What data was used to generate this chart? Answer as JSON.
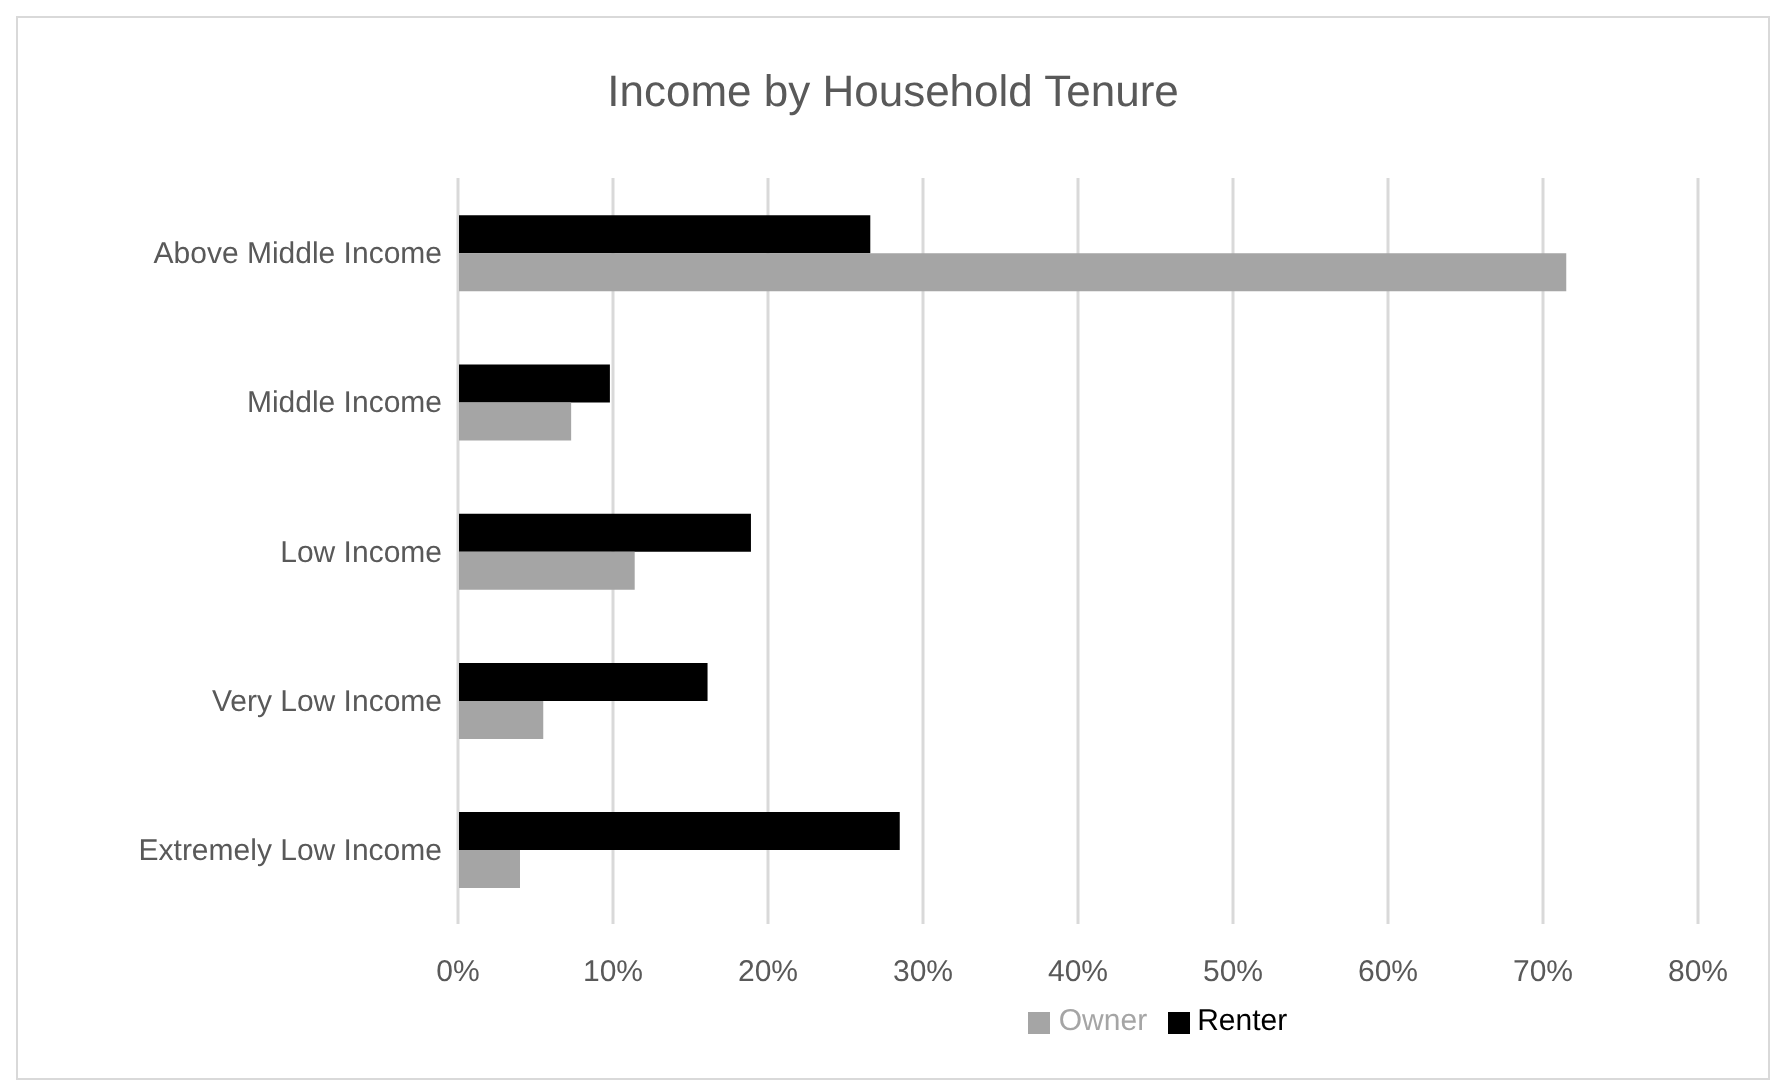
{
  "chart_data": {
    "type": "bar",
    "orientation": "horizontal",
    "title": "Income by Household Tenure",
    "categories": [
      "Above Middle Income",
      "Middle Income",
      "Low Income",
      "Very Low Income",
      "Extremely Low Income"
    ],
    "series": [
      {
        "name": "Renter",
        "color": "#000000",
        "values": [
          26.6,
          9.8,
          18.9,
          16.1,
          28.5
        ]
      },
      {
        "name": "Owner",
        "color": "#a5a5a5",
        "values": [
          71.5,
          7.3,
          11.4,
          5.5,
          4.0
        ]
      }
    ],
    "xlim": [
      0,
      80
    ],
    "xticks": [
      {
        "value": 0,
        "label": "0%"
      },
      {
        "value": 10,
        "label": "10%"
      },
      {
        "value": 20,
        "label": "20%"
      },
      {
        "value": 30,
        "label": "30%"
      },
      {
        "value": 40,
        "label": "40%"
      },
      {
        "value": 50,
        "label": "50%"
      },
      {
        "value": 60,
        "label": "60%"
      },
      {
        "value": 70,
        "label": "70%"
      },
      {
        "value": 80,
        "label": "80%"
      }
    ],
    "grid": "x",
    "legend": "bottom"
  }
}
